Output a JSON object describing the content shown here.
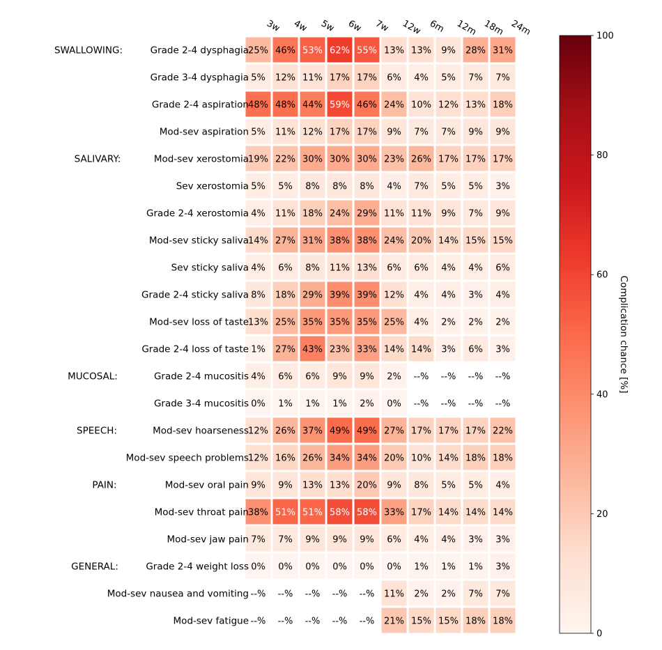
{
  "chart_data": {
    "type": "heatmap",
    "columns": [
      "3w",
      "4w",
      "5w",
      "6w",
      "7w",
      "12w",
      "6m",
      "12m",
      "18m",
      "24m"
    ],
    "groups": [
      {
        "label": "SWALLOWING:",
        "first_row": 0
      },
      {
        "label": "SALIVARY:",
        "first_row": 4
      },
      {
        "label": "MUCOSAL:",
        "first_row": 12
      },
      {
        "label": "SPEECH:",
        "first_row": 14
      },
      {
        "label": "PAIN:",
        "first_row": 16
      },
      {
        "label": "GENERAL:",
        "first_row": 19
      }
    ],
    "rows": [
      {
        "label": "Grade 2-4 dysphagia",
        "values": [
          25,
          46,
          53,
          62,
          55,
          13,
          13,
          9,
          28,
          31
        ]
      },
      {
        "label": "Grade 3-4 dysphagia",
        "values": [
          5,
          12,
          11,
          17,
          17,
          6,
          4,
          5,
          7,
          7
        ]
      },
      {
        "label": "Grade 2-4 aspiration",
        "values": [
          48,
          48,
          44,
          59,
          46,
          24,
          10,
          12,
          13,
          18
        ]
      },
      {
        "label": "Mod-sev aspiration",
        "values": [
          5,
          11,
          12,
          17,
          17,
          9,
          7,
          7,
          9,
          9
        ]
      },
      {
        "label": "Mod-sev xerostomia",
        "values": [
          19,
          22,
          30,
          30,
          30,
          23,
          26,
          17,
          17,
          17
        ]
      },
      {
        "label": "Sev xerostomia",
        "values": [
          5,
          5,
          8,
          8,
          8,
          4,
          7,
          5,
          5,
          3
        ]
      },
      {
        "label": "Grade 2-4 xerostomia",
        "values": [
          4,
          11,
          18,
          24,
          29,
          11,
          11,
          9,
          7,
          9
        ]
      },
      {
        "label": "Mod-sev sticky saliva",
        "values": [
          14,
          27,
          31,
          38,
          38,
          24,
          20,
          14,
          15,
          15
        ]
      },
      {
        "label": "Sev sticky saliva",
        "values": [
          4,
          6,
          8,
          11,
          13,
          6,
          6,
          4,
          4,
          6
        ]
      },
      {
        "label": "Grade 2-4 sticky saliva",
        "values": [
          8,
          18,
          29,
          39,
          39,
          12,
          4,
          4,
          3,
          4
        ]
      },
      {
        "label": "Mod-sev loss of taste",
        "values": [
          13,
          25,
          35,
          35,
          35,
          25,
          4,
          2,
          2,
          2
        ]
      },
      {
        "label": "Grade 2-4 loss of taste",
        "values": [
          1,
          27,
          43,
          23,
          33,
          14,
          14,
          3,
          6,
          3
        ]
      },
      {
        "label": "Grade 2-4 mucositis",
        "values": [
          4,
          6,
          6,
          9,
          9,
          2,
          null,
          null,
          null,
          null
        ]
      },
      {
        "label": "Grade 3-4 mucositis",
        "values": [
          0,
          1,
          1,
          1,
          2,
          0,
          null,
          null,
          null,
          null
        ]
      },
      {
        "label": "Mod-sev hoarseness",
        "values": [
          12,
          26,
          37,
          49,
          49,
          27,
          17,
          17,
          17,
          22
        ]
      },
      {
        "label": "Mod-sev speech problems",
        "values": [
          12,
          16,
          26,
          34,
          34,
          20,
          10,
          14,
          18,
          18
        ]
      },
      {
        "label": "Mod-sev oral pain",
        "values": [
          9,
          9,
          13,
          13,
          20,
          9,
          8,
          5,
          5,
          4
        ]
      },
      {
        "label": "Mod-sev throat pain",
        "values": [
          38,
          51,
          51,
          58,
          58,
          33,
          17,
          14,
          14,
          14
        ]
      },
      {
        "label": "Mod-sev jaw pain",
        "values": [
          7,
          7,
          9,
          9,
          9,
          6,
          4,
          4,
          3,
          3
        ]
      },
      {
        "label": "Grade 2-4 weight loss",
        "values": [
          0,
          0,
          0,
          0,
          0,
          0,
          1,
          1,
          1,
          3
        ]
      },
      {
        "label": "Mod-sev nausea and vomiting",
        "values": [
          null,
          null,
          null,
          null,
          null,
          11,
          2,
          2,
          7,
          7
        ]
      },
      {
        "label": "Mod-sev fatigue",
        "values": [
          null,
          null,
          null,
          null,
          null,
          21,
          15,
          15,
          18,
          18
        ]
      }
    ],
    "missing_label": "--%",
    "value_suffix": "%",
    "colorbar": {
      "label": "Complication chance [%]",
      "range": [
        0,
        100
      ],
      "ticks": [
        0,
        20,
        40,
        60,
        80,
        100
      ],
      "colormap": "Reds"
    }
  }
}
